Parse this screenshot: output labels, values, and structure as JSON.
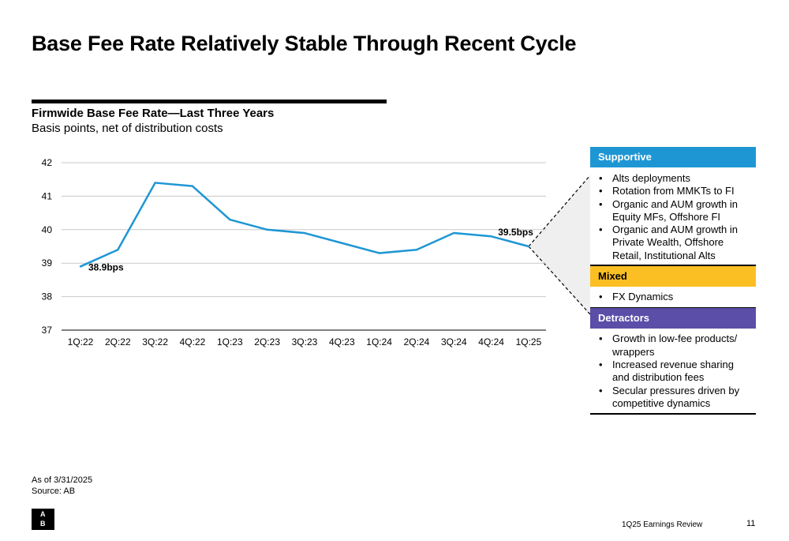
{
  "page": {
    "title": "Base Fee Rate Relatively Stable Through Recent Cycle",
    "as_of": "As of 3/31/2025",
    "source": "Source: AB",
    "footer": "1Q25 Earnings Review",
    "page_number": "11"
  },
  "logo": {
    "letters": [
      "A",
      "B"
    ]
  },
  "chart_data": {
    "type": "line",
    "title": "Firmwide Base Fee Rate—Last Three Years",
    "subtitle": "Basis points, net of distribution costs",
    "categories": [
      "1Q:22",
      "2Q:22",
      "3Q:22",
      "4Q:22",
      "1Q:23",
      "2Q:23",
      "3Q:23",
      "4Q:23",
      "1Q:24",
      "2Q:24",
      "3Q:24",
      "4Q:24",
      "1Q:25"
    ],
    "series": [
      {
        "values": [
          38.9,
          39.4,
          41.4,
          41.3,
          40.3,
          40.0,
          39.9,
          39.6,
          39.3,
          39.4,
          39.9,
          39.8,
          39.5
        ],
        "color": "#1e96d4"
      }
    ],
    "yticks": [
      42,
      41,
      40,
      39,
      38,
      37
    ],
    "ylim": [
      37,
      42
    ],
    "grid": true,
    "annotations": [
      {
        "index": 0,
        "text": "38.9bps"
      },
      {
        "index": 12,
        "text": "39.5bps"
      }
    ]
  },
  "panel": {
    "supportive": {
      "label": "Supportive",
      "color": "#1e96d4",
      "items": [
        "Alts deployments",
        "Rotation from MMKTs to FI",
        "Organic and AUM growth in Equity MFs, Offshore FI",
        "Organic and AUM growth in Private Wealth, Offshore Retail, Institutional Alts"
      ]
    },
    "mixed": {
      "label": "Mixed",
      "color": "#fbbf24",
      "items": [
        "FX Dynamics"
      ]
    },
    "detractors": {
      "label": "Detractors",
      "color": "#5b4ea8",
      "items": [
        "Growth in low-fee products/ wrappers",
        "Increased revenue sharing and distribution fees",
        "Secular pressures driven by competitive dynamics"
      ]
    }
  }
}
